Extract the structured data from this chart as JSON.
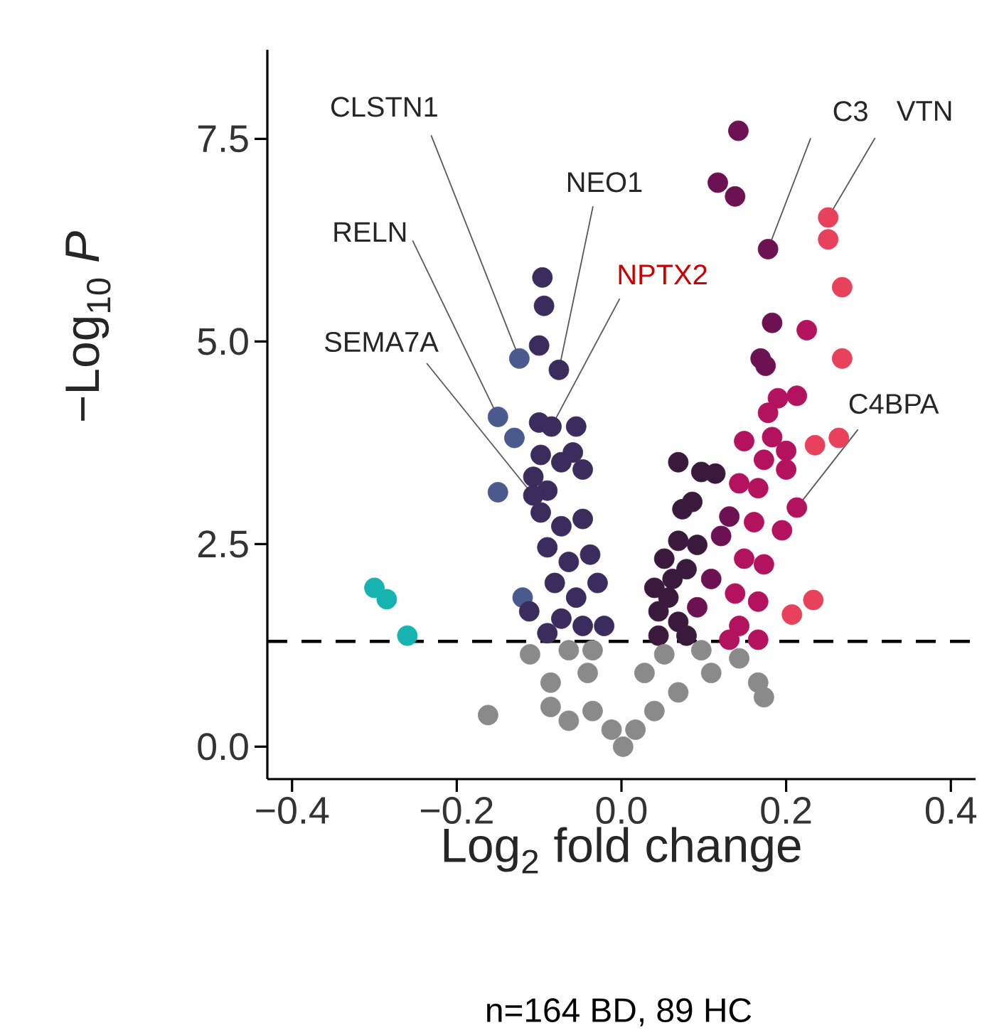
{
  "chart_data": {
    "type": "scatter",
    "xlabel": "Log$_{2}$ fold change",
    "ylabel": "−Log$_{10}$ *P*",
    "xlim": [
      -0.43,
      0.43
    ],
    "ylim": [
      -0.4,
      8.6
    ],
    "xticks": [
      {
        "value": -0.4,
        "label": "−0.4"
      },
      {
        "value": -0.2,
        "label": "−0.2"
      },
      {
        "value": 0,
        "label": "0.0"
      },
      {
        "value": 0.2,
        "label": "0.2"
      },
      {
        "value": 0.4,
        "label": "0.4"
      }
    ],
    "yticks": [
      {
        "value": 0,
        "label": "0.0"
      },
      {
        "value": 2.5,
        "label": "2.5"
      },
      {
        "value": 5,
        "label": "5.0"
      },
      {
        "value": 7.5,
        "label": "7.5"
      }
    ],
    "series": [
      {
        "color": "#17b3b0",
        "x": [
          -0.3,
          -0.285,
          -0.26
        ],
        "values": [
          1.96,
          1.82,
          1.37
        ]
      },
      {
        "color": "#4a5a8c",
        "x": [
          -0.15,
          -0.15,
          -0.13,
          -0.124,
          -0.12
        ],
        "values": [
          4.07,
          3.14,
          3.81,
          4.79,
          1.84
        ]
      },
      {
        "color": "#3a2c5c",
        "x": [
          -0.096,
          -0.094,
          -0.1,
          -0.076,
          -0.1,
          -0.055,
          -0.059,
          -0.107,
          -0.09,
          -0.073,
          -0.047,
          -0.098,
          -0.073,
          -0.047,
          -0.09,
          -0.064,
          -0.038,
          -0.081,
          -0.055,
          -0.029,
          -0.073,
          -0.047,
          -0.021,
          -0.09,
          -0.112,
          -0.098,
          -0.085,
          -0.107
        ],
        "values": [
          5.79,
          5.44,
          4.95,
          4.65,
          4.0,
          3.95,
          3.63,
          3.33,
          3.16,
          3.51,
          3.42,
          2.89,
          2.72,
          2.81,
          2.46,
          2.28,
          2.37,
          2.02,
          1.84,
          2.02,
          1.58,
          1.49,
          1.49,
          1.4,
          1.67,
          3.6,
          3.95,
          3.1
        ]
      },
      {
        "color": "#3a1a3c",
        "x": [
          0.069,
          0.097,
          0.114,
          0.086,
          0.074,
          0.069,
          0.052,
          0.04,
          0.057,
          0.045,
          0.069,
          0.045,
          0.079,
          0.092,
          0.079,
          0.062
        ],
        "values": [
          3.51,
          3.39,
          3.37,
          3.02,
          2.93,
          2.54,
          2.32,
          1.96,
          1.84,
          1.67,
          1.54,
          1.37,
          2.19,
          2.49,
          1.37,
          2.07
        ]
      },
      {
        "color": "#6c1252",
        "x": [
          0.142,
          0.117,
          0.138,
          0.178,
          0.183,
          0.169,
          0.175,
          0.121,
          0.109,
          0.092,
          0.131
        ],
        "values": [
          7.6,
          6.96,
          6.79,
          6.14,
          5.23,
          4.79,
          4.7,
          2.6,
          2.07,
          1.72,
          2.84
        ]
      },
      {
        "color": "#b3125e",
        "x": [
          0.225,
          0.19,
          0.213,
          0.178,
          0.183,
          0.2,
          0.173,
          0.149,
          0.2,
          0.143,
          0.166,
          0.213,
          0.161,
          0.195,
          0.149,
          0.173,
          0.138,
          0.166,
          0.143,
          0.166,
          0.131
        ],
        "values": [
          5.14,
          4.3,
          4.33,
          4.12,
          3.82,
          3.65,
          3.54,
          3.77,
          3.42,
          3.25,
          3.19,
          2.95,
          2.77,
          2.67,
          2.32,
          2.25,
          1.89,
          1.79,
          1.49,
          1.32,
          1.32
        ]
      },
      {
        "color": "#e8415c",
        "x": [
          0.235,
          0.251,
          0.251,
          0.268,
          0.268,
          0.264,
          0.233,
          0.207
        ],
        "values": [
          3.72,
          6.53,
          6.26,
          5.67,
          4.79,
          3.81,
          1.81,
          1.63
        ]
      },
      {
        "color": "#8a8a8a",
        "x": [
          -0.162,
          0.166,
          0.173,
          -0.111,
          -0.064,
          -0.035,
          -0.086,
          -0.064,
          -0.035,
          -0.012,
          0.002,
          0.017,
          0.04,
          0.069,
          0.109,
          0.143,
          0.052,
          0.097,
          -0.086,
          0.028,
          -0.041
        ],
        "values": [
          0.39,
          0.79,
          0.61,
          1.14,
          1.19,
          1.19,
          0.79,
          0.32,
          0.44,
          0.21,
          0.0,
          0.21,
          0.44,
          0.67,
          0.91,
          1.09,
          1.14,
          1.19,
          0.49,
          0.91,
          0.91
        ]
      }
    ],
    "ref_lines": [
      {
        "axis": "y",
        "value": 1.3,
        "line_style": "dashed",
        "color": "#000000"
      }
    ],
    "annotations": [
      {
        "text": "CLSTN1",
        "x": -0.124,
        "y": 4.79
      },
      {
        "text": "NEO1",
        "x": -0.076,
        "y": 4.65
      },
      {
        "text": "RELN",
        "x": -0.15,
        "y": 4.07
      },
      {
        "text": "NPTX2",
        "x": -0.085,
        "y": 3.95
      },
      {
        "text": "SEMA7A",
        "x": -0.107,
        "y": 3.1
      },
      {
        "text": "C3",
        "x": 0.178,
        "y": 6.14
      },
      {
        "text": "VTN",
        "x": 0.251,
        "y": 6.53
      },
      {
        "text": "C4BPA",
        "x": 0.213,
        "y": 2.95
      },
      "n=164 BD, 89 HC"
    ]
  }
}
